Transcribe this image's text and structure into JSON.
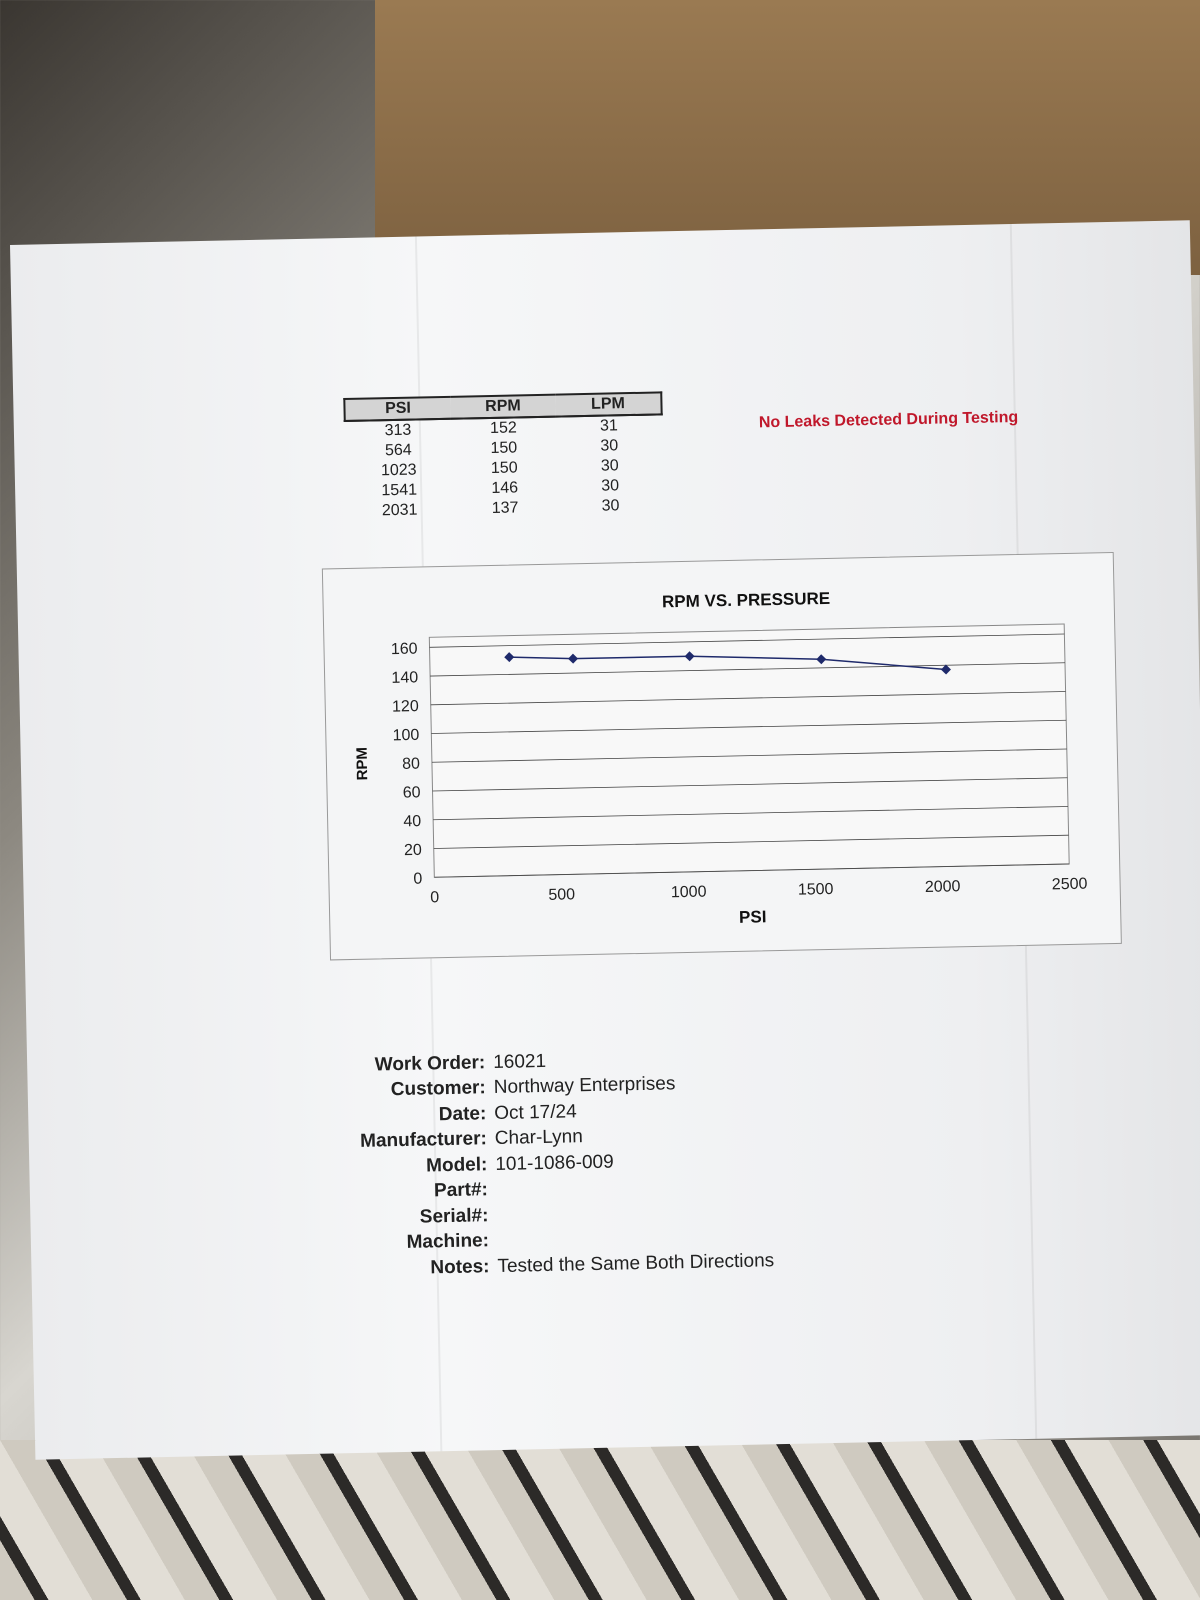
{
  "report": {
    "table": {
      "headers": [
        "PSI",
        "RPM",
        "LPM"
      ],
      "rows": [
        [
          "313",
          "152",
          "31"
        ],
        [
          "564",
          "150",
          "30"
        ],
        [
          "1023",
          "150",
          "30"
        ],
        [
          "1541",
          "146",
          "30"
        ],
        [
          "2031",
          "137",
          "30"
        ]
      ]
    },
    "leak_notice": "No Leaks Detected During Testing",
    "fields": [
      {
        "label": "Work Order:",
        "value": "16021"
      },
      {
        "label": "Customer:",
        "value": "Northway Enterprises"
      },
      {
        "label": "Date:",
        "value": "Oct 17/24"
      },
      {
        "label": "Manufacturer:",
        "value": "Char-Lynn"
      },
      {
        "label": "Model:",
        "value": "101-1086-009"
      },
      {
        "label": "Part#:",
        "value": ""
      },
      {
        "label": "Serial#:",
        "value": ""
      },
      {
        "label": "Machine:",
        "value": ""
      },
      {
        "label": "Notes:",
        "value": "Tested the Same Both Directions"
      }
    ],
    "colors": {
      "notice": "#c0182b",
      "series": "#1f2a6b"
    }
  },
  "chart_data": {
    "type": "line",
    "title": "RPM VS. PRESSURE",
    "xlabel": "PSI",
    "ylabel": "RPM",
    "x": [
      313,
      564,
      1023,
      1541,
      2031
    ],
    "series": [
      {
        "values": [
          152,
          150,
          150,
          146,
          137
        ]
      }
    ],
    "xlim": [
      0,
      2500
    ],
    "ylim": [
      0,
      160
    ],
    "xticks": [
      "0",
      "500",
      "1000",
      "1500",
      "2000",
      "2500"
    ],
    "yticks": [
      "0",
      "20",
      "40",
      "60",
      "80",
      "100",
      "120",
      "140",
      "160"
    ],
    "grid": true
  }
}
